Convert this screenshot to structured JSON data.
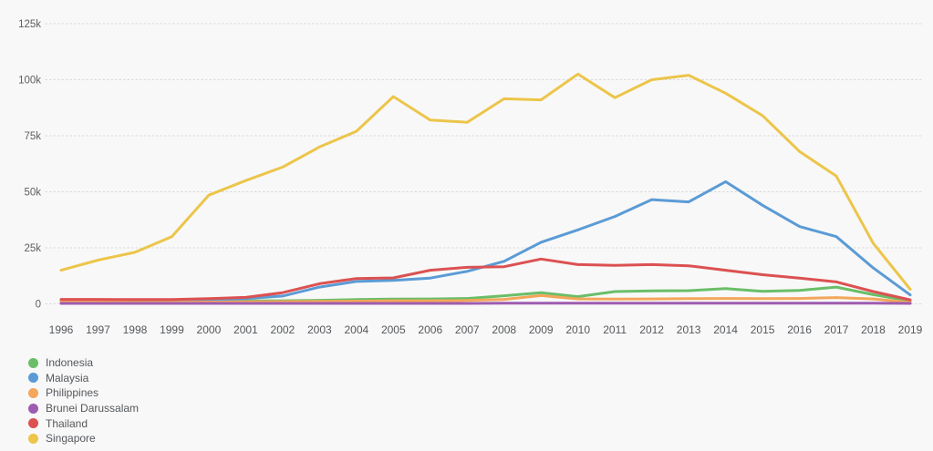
{
  "page": {
    "background": "#f8f8f8",
    "text_color": "#55585c",
    "gridline_color": "#d7d7d7"
  },
  "chart_data": {
    "type": "line",
    "title": "",
    "xlabel": "",
    "ylabel": "",
    "x": [
      1996,
      1997,
      1998,
      1999,
      2000,
      2001,
      2002,
      2003,
      2004,
      2005,
      2006,
      2007,
      2008,
      2009,
      2010,
      2011,
      2012,
      2013,
      2014,
      2015,
      2016,
      2017,
      2018,
      2019
    ],
    "x_tick_labels": [
      "1996",
      "1997",
      "1998",
      "1999",
      "2000",
      "2001",
      "2002",
      "2003",
      "2004",
      "2005",
      "2006",
      "2007",
      "2008",
      "2009",
      "2010",
      "2011",
      "2012",
      "2013",
      "2014",
      "2015",
      "2016",
      "2017",
      "2018",
      "2019"
    ],
    "yticks": [
      {
        "value": 0,
        "label": "0"
      },
      {
        "value": 25000,
        "label": "25k"
      },
      {
        "value": 50000,
        "label": "50k"
      },
      {
        "value": 75000,
        "label": "75k"
      },
      {
        "value": 100000,
        "label": "100k"
      },
      {
        "value": 125000,
        "label": "125k"
      }
    ],
    "ylim": [
      0,
      125000
    ],
    "grid": "horizontal-dotted",
    "legend_position": "bottom-left",
    "series": [
      {
        "name": "Indonesia",
        "color": "#6abe68",
        "values": [
          1200,
          1300,
          900,
          1000,
          1200,
          1300,
          1400,
          1600,
          1900,
          2100,
          2200,
          2400,
          3600,
          5000,
          3200,
          5500,
          5800,
          5900,
          6800,
          5600,
          6000,
          7500,
          4100,
          1300
        ]
      },
      {
        "name": "Malaysia",
        "color": "#5b9bd5",
        "values": [
          1000,
          1400,
          700,
          900,
          1800,
          2300,
          3500,
          7500,
          10000,
          10500,
          11500,
          14500,
          19000,
          27500,
          33000,
          39000,
          46500,
          45500,
          54500,
          44000,
          34500,
          30000,
          16000,
          4000
        ]
      },
      {
        "name": "Philippines",
        "color": "#f4a65a",
        "values": [
          800,
          900,
          700,
          700,
          800,
          900,
          1000,
          1100,
          1200,
          1400,
          1400,
          1500,
          2000,
          3700,
          2200,
          2100,
          2200,
          2300,
          2400,
          2300,
          2400,
          2800,
          2200,
          600
        ]
      },
      {
        "name": "Brunei Darussalam",
        "color": "#9e5cb0",
        "values": [
          200,
          200,
          200,
          200,
          200,
          200,
          200,
          200,
          200,
          200,
          200,
          200,
          300,
          300,
          300,
          300,
          300,
          300,
          300,
          300,
          300,
          300,
          300,
          200
        ]
      },
      {
        "name": "Thailand",
        "color": "#dc5151",
        "values": [
          2000,
          2000,
          1900,
          1900,
          2300,
          2900,
          5000,
          9000,
          11300,
          11600,
          15000,
          16300,
          16600,
          20000,
          17500,
          17200,
          17500,
          17000,
          15000,
          13000,
          11500,
          9800,
          5500,
          1800
        ]
      },
      {
        "name": "Singapore",
        "color": "#ecc54a",
        "values": [
          15000,
          19500,
          23000,
          30000,
          48500,
          55000,
          61000,
          70000,
          77000,
          92500,
          82000,
          81000,
          91500,
          91000,
          102500,
          92000,
          100000,
          102000,
          94000,
          84000,
          68000,
          57000,
          27000,
          6500
        ]
      }
    ]
  }
}
